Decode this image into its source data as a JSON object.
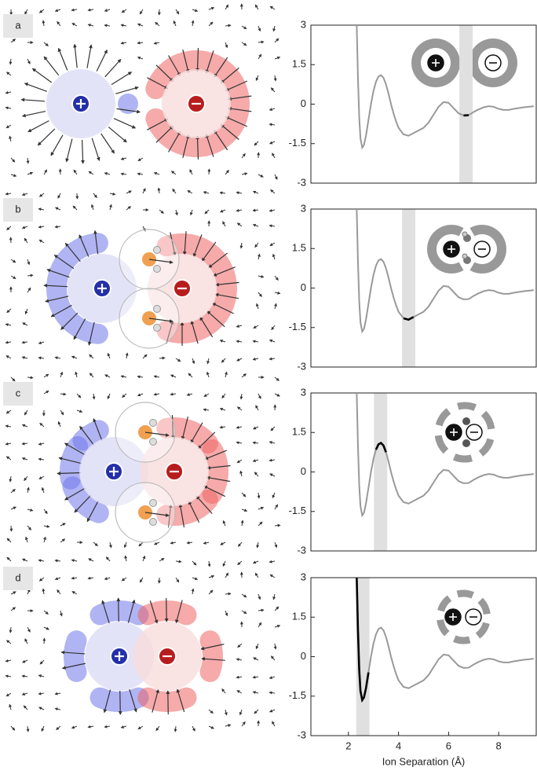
{
  "chart_data": [
    {
      "type": "line",
      "label": "a",
      "color": "#999999",
      "highlight": [
        6.43,
        6.96
      ],
      "highlight_color": "#e0e0e0",
      "highlight_line_color": "#000000",
      "x": [
        2.33,
        2.38,
        2.43,
        2.48,
        2.55,
        2.62,
        2.7,
        2.8,
        2.9,
        3.0,
        3.1,
        3.2,
        3.3,
        3.4,
        3.5,
        3.6,
        3.7,
        3.8,
        3.9,
        4.0,
        4.2,
        4.4,
        4.6,
        4.8,
        5.0,
        5.2,
        5.4,
        5.6,
        5.8,
        6.0,
        6.2,
        6.4,
        6.6,
        6.8,
        7.0,
        7.2,
        7.4,
        7.6,
        7.8,
        8.0,
        8.2,
        8.4,
        8.6,
        8.8,
        9.0,
        9.2,
        9.4
      ],
      "values": [
        3.0,
        1.0,
        -0.5,
        -1.3,
        -1.65,
        -1.55,
        -1.2,
        -0.6,
        0.0,
        0.5,
        0.85,
        1.05,
        1.1,
        1.0,
        0.75,
        0.4,
        0.0,
        -0.35,
        -0.65,
        -0.9,
        -1.15,
        -1.2,
        -1.1,
        -1.0,
        -0.9,
        -0.7,
        -0.4,
        -0.1,
        0.08,
        0.05,
        -0.15,
        -0.35,
        -0.43,
        -0.42,
        -0.3,
        -0.2,
        -0.12,
        -0.08,
        -0.1,
        -0.18,
        -0.22,
        -0.22,
        -0.18,
        -0.15,
        -0.12,
        -0.1,
        -0.08
      ],
      "xlim": [
        0.5,
        9.5
      ],
      "ylim": [
        -3,
        3
      ],
      "yticks": [
        3,
        1.5,
        0,
        -1.5,
        -3
      ]
    },
    {
      "type": "line",
      "label": "b",
      "color": "#999999",
      "highlight": [
        4.14,
        4.67
      ],
      "highlight_color": "#e0e0e0",
      "highlight_line_color": "#000000",
      "x": [
        2.33,
        2.38,
        2.43,
        2.48,
        2.55,
        2.62,
        2.7,
        2.8,
        2.9,
        3.0,
        3.1,
        3.2,
        3.3,
        3.4,
        3.5,
        3.6,
        3.7,
        3.8,
        3.9,
        4.0,
        4.2,
        4.4,
        4.6,
        4.8,
        5.0,
        5.2,
        5.4,
        5.6,
        5.8,
        6.0,
        6.2,
        6.4,
        6.6,
        6.8,
        7.0,
        7.2,
        7.4,
        7.6,
        7.8,
        8.0,
        8.2,
        8.4,
        8.6,
        8.8,
        9.0,
        9.2,
        9.4
      ],
      "values": [
        3.0,
        1.0,
        -0.5,
        -1.3,
        -1.65,
        -1.55,
        -1.2,
        -0.6,
        0.0,
        0.5,
        0.85,
        1.05,
        1.1,
        1.0,
        0.75,
        0.4,
        0.0,
        -0.35,
        -0.65,
        -0.9,
        -1.15,
        -1.2,
        -1.1,
        -1.0,
        -0.9,
        -0.7,
        -0.4,
        -0.1,
        0.08,
        0.05,
        -0.15,
        -0.35,
        -0.43,
        -0.42,
        -0.3,
        -0.2,
        -0.12,
        -0.08,
        -0.1,
        -0.18,
        -0.22,
        -0.22,
        -0.18,
        -0.15,
        -0.12,
        -0.1,
        -0.08
      ],
      "xlim": [
        0.5,
        9.5
      ],
      "ylim": [
        -3,
        3
      ],
      "yticks": [
        3,
        1.5,
        0,
        -1.5,
        -3
      ]
    },
    {
      "type": "line",
      "label": "c",
      "color": "#999999",
      "highlight": [
        3.02,
        3.55
      ],
      "highlight_color": "#e0e0e0",
      "highlight_line_color": "#000000",
      "x": [
        2.33,
        2.38,
        2.43,
        2.48,
        2.55,
        2.62,
        2.7,
        2.8,
        2.9,
        3.0,
        3.1,
        3.2,
        3.3,
        3.4,
        3.5,
        3.6,
        3.7,
        3.8,
        3.9,
        4.0,
        4.2,
        4.4,
        4.6,
        4.8,
        5.0,
        5.2,
        5.4,
        5.6,
        5.8,
        6.0,
        6.2,
        6.4,
        6.6,
        6.8,
        7.0,
        7.2,
        7.4,
        7.6,
        7.8,
        8.0,
        8.2,
        8.4,
        8.6,
        8.8,
        9.0,
        9.2,
        9.4
      ],
      "values": [
        3.0,
        1.0,
        -0.5,
        -1.3,
        -1.65,
        -1.55,
        -1.2,
        -0.6,
        0.0,
        0.5,
        0.85,
        1.05,
        1.1,
        1.0,
        0.75,
        0.4,
        0.0,
        -0.35,
        -0.65,
        -0.9,
        -1.15,
        -1.2,
        -1.1,
        -1.0,
        -0.9,
        -0.7,
        -0.4,
        -0.1,
        0.08,
        0.05,
        -0.15,
        -0.35,
        -0.43,
        -0.42,
        -0.3,
        -0.2,
        -0.12,
        -0.08,
        -0.1,
        -0.18,
        -0.22,
        -0.22,
        -0.18,
        -0.15,
        -0.12,
        -0.1,
        -0.08
      ],
      "xlim": [
        0.5,
        9.5
      ],
      "ylim": [
        -3,
        3
      ],
      "yticks": [
        3,
        1.5,
        0,
        -1.5,
        -3
      ]
    },
    {
      "type": "line",
      "label": "d",
      "color": "#999999",
      "highlight": [
        2.31,
        2.84
      ],
      "highlight_color": "#e0e0e0",
      "highlight_line_color": "#000000",
      "x": [
        2.33,
        2.38,
        2.43,
        2.48,
        2.55,
        2.62,
        2.7,
        2.8,
        2.9,
        3.0,
        3.1,
        3.2,
        3.3,
        3.4,
        3.5,
        3.6,
        3.7,
        3.8,
        3.9,
        4.0,
        4.2,
        4.4,
        4.6,
        4.8,
        5.0,
        5.2,
        5.4,
        5.6,
        5.8,
        6.0,
        6.2,
        6.4,
        6.6,
        6.8,
        7.0,
        7.2,
        7.4,
        7.6,
        7.8,
        8.0,
        8.2,
        8.4,
        8.6,
        8.8,
        9.0,
        9.2,
        9.4
      ],
      "values": [
        3.0,
        1.0,
        -0.5,
        -1.3,
        -1.65,
        -1.55,
        -1.2,
        -0.6,
        0.0,
        0.5,
        0.85,
        1.05,
        1.1,
        1.0,
        0.75,
        0.4,
        0.0,
        -0.35,
        -0.65,
        -0.9,
        -1.15,
        -1.2,
        -1.1,
        -1.0,
        -0.9,
        -0.7,
        -0.4,
        -0.1,
        0.08,
        0.05,
        -0.15,
        -0.35,
        -0.43,
        -0.42,
        -0.3,
        -0.2,
        -0.12,
        -0.08,
        -0.1,
        -0.18,
        -0.22,
        -0.22,
        -0.18,
        -0.15,
        -0.12,
        -0.1,
        -0.08
      ],
      "xlim": [
        0.5,
        9.5
      ],
      "ylim": [
        -3,
        3
      ],
      "yticks": [
        3,
        1.5,
        0,
        -1.5,
        -3
      ],
      "xticks": [
        2,
        4,
        6,
        8
      ],
      "xlabel": "Ion Separation (Å)"
    }
  ]
}
